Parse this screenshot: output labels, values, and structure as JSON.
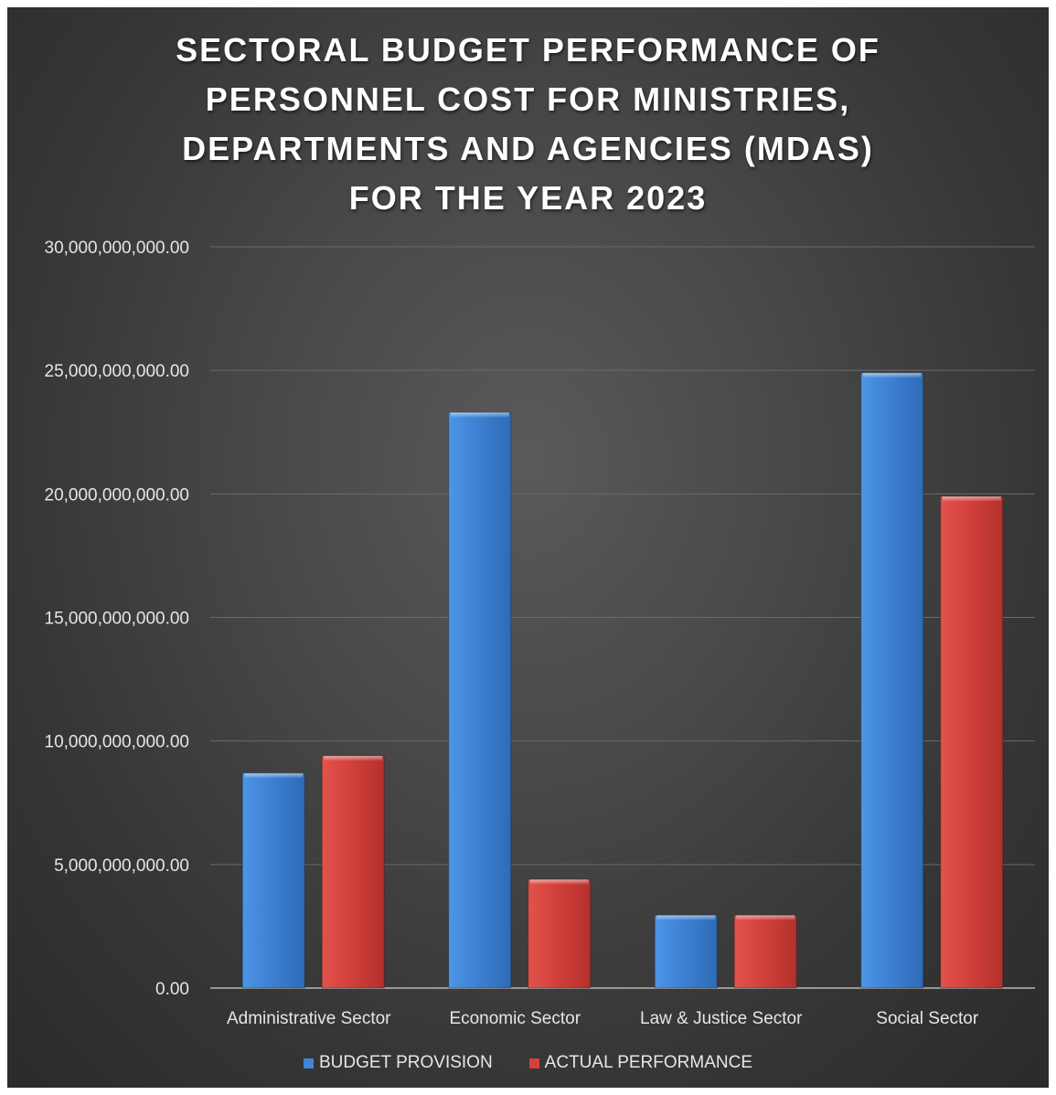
{
  "chart_data": {
    "type": "bar",
    "title_lines": [
      "SECTORAL BUDGET PERFORMANCE OF",
      "PERSONNEL COST FOR MINISTRIES,",
      "DEPARTMENTS AND AGENCIES (MDAS)",
      "FOR THE YEAR 2023"
    ],
    "categories": [
      "Administrative Sector",
      "Economic Sector",
      "Law & Justice Sector",
      "Social Sector"
    ],
    "series": [
      {
        "name": "BUDGET PROVISION",
        "color": "#3f86d8",
        "values": [
          8700000000,
          23300000000,
          2950000000,
          24900000000
        ]
      },
      {
        "name": "ACTUAL PERFORMANCE",
        "color": "#d8403b",
        "values": [
          9400000000,
          4400000000,
          2950000000,
          19900000000
        ]
      }
    ],
    "ylim": [
      0,
      30000000000
    ],
    "yticks": [
      0,
      5000000000,
      10000000000,
      15000000000,
      20000000000,
      25000000000,
      30000000000
    ],
    "ytick_labels": [
      "0.00",
      "5,000,000,000.00",
      "10,000,000,000.00",
      "15,000,000,000.00",
      "20,000,000,000.00",
      "25,000,000,000.00",
      "30,000,000,000.00"
    ],
    "grid": true,
    "legend_position": "bottom"
  }
}
